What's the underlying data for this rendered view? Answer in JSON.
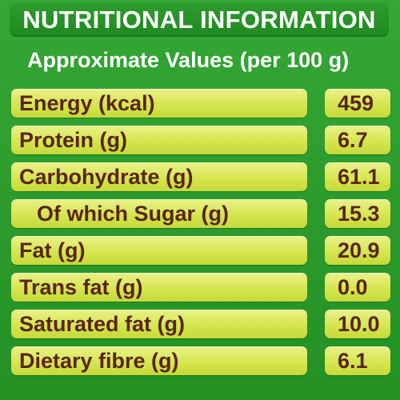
{
  "header": {
    "title": "NUTRITIONAL INFORMATION",
    "subtitle": "Approximate Values (per 100 g)"
  },
  "colors": {
    "background": "#2e9e2e",
    "row_fill": "#d6e64f",
    "text_dark": "#5a2416",
    "text_light": "#ffffff"
  },
  "rows": [
    {
      "label": "Energy (kcal)",
      "value": "459"
    },
    {
      "label": "Protein (g)",
      "value": "6.7"
    },
    {
      "label": "Carbohydrate (g)",
      "value": "61.1"
    },
    {
      "label": "Of which Sugar (g)",
      "value": "15.3"
    },
    {
      "label": "Fat (g)",
      "value": "20.9"
    },
    {
      "label": "Trans fat (g)",
      "value": "0.0"
    },
    {
      "label": "Saturated fat (g)",
      "value": "10.0"
    },
    {
      "label": "Dietary fibre (g)",
      "value": "6.1"
    }
  ]
}
